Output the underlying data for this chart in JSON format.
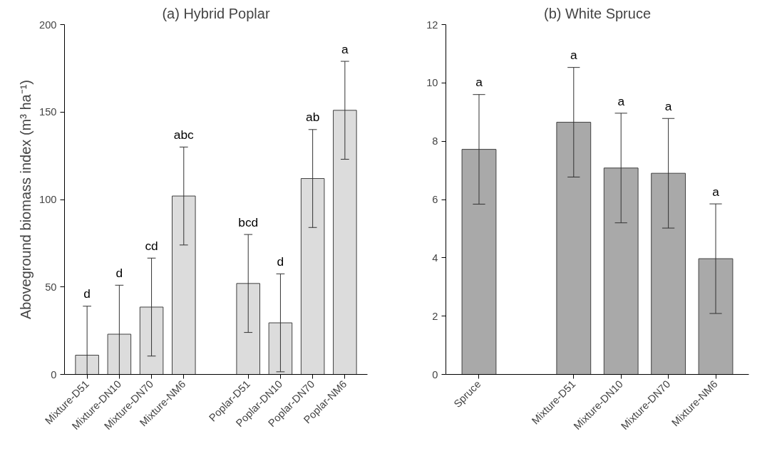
{
  "chart_data": [
    {
      "type": "bar",
      "title": "(a) Hybrid Poplar",
      "ylabel": "Aboveground biomass index (m³ ha⁻¹)",
      "categories": [
        "Mixture-D51",
        "Mixture-DN10",
        "Mixture-DN70",
        "Mixture-NM6",
        null,
        "Poplar-D51",
        "Poplar-DN10",
        "Poplar-DN70",
        "Poplar-NM6"
      ],
      "values": [
        11,
        23,
        38.5,
        102,
        null,
        52,
        29.5,
        112,
        151
      ],
      "errors": [
        28,
        28,
        28,
        28,
        null,
        28,
        28,
        28,
        28
      ],
      "color": "#dcdcdc",
      "ylim": [
        0,
        200
      ],
      "yticks": [
        0,
        50,
        100,
        150,
        200
      ],
      "grid": false,
      "annotations": [
        {
          "text": "d",
          "x": "Mixture-D51",
          "y": 39
        },
        {
          "text": "d",
          "x": "Mixture-DN10",
          "y": 51
        },
        {
          "text": "cd",
          "x": "Mixture-DN70",
          "y": 66.5
        },
        {
          "text": "abc",
          "x": "Mixture-NM6",
          "y": 130
        },
        {
          "text": "bcd",
          "x": "Poplar-D51",
          "y": 80
        },
        {
          "text": "d",
          "x": "Poplar-DN10",
          "y": 57.5
        },
        {
          "text": "ab",
          "x": "Poplar-DN70",
          "y": 140
        },
        {
          "text": "a",
          "x": "Poplar-NM6",
          "y": 179
        }
      ]
    },
    {
      "type": "bar",
      "title": "(b) White Spruce",
      "categories": [
        "Spruce",
        null,
        "Mixture-D51",
        "Mixture-DN10",
        "Mixture-DN70",
        "Mixture-NM6"
      ],
      "values": [
        7.72,
        null,
        8.65,
        7.08,
        6.9,
        3.97
      ],
      "errors": [
        1.88,
        null,
        1.88,
        1.88,
        1.88,
        1.88
      ],
      "color": "#a9a9a9",
      "ylim": [
        0,
        12
      ],
      "yticks": [
        0,
        2,
        4,
        6,
        8,
        10,
        12
      ],
      "grid": false,
      "annotations": [
        {
          "text": "a",
          "x": "Spruce",
          "y": 9.6
        },
        {
          "text": "a",
          "x": "Mixture-D51",
          "y": 10.53
        },
        {
          "text": "a",
          "x": "Mixture-DN10",
          "y": 8.96
        },
        {
          "text": "a",
          "x": "Mixture-DN70",
          "y": 8.78
        },
        {
          "text": "a",
          "x": "Mixture-NM6",
          "y": 5.85
        }
      ]
    }
  ]
}
